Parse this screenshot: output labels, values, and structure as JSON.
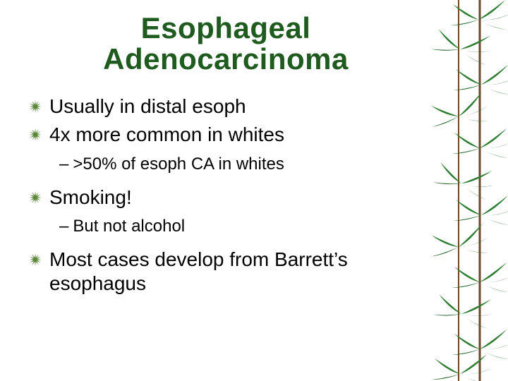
{
  "slide": {
    "title_line1": "Esophageal",
    "title_line2": "Adenocarcinoma",
    "title_color": "#1f5a1f",
    "title_fontsize": 42,
    "body_color": "#000000",
    "body_fontsize": 28,
    "sub_fontsize": 24,
    "bullet_color": "#5a8a3a",
    "background_color": "#ffffff",
    "items": [
      {
        "text": "Usually in distal esoph",
        "sub": []
      },
      {
        "text": "4x more common in whites",
        "sub": [
          ">50% of esoph CA in whites"
        ]
      },
      {
        "text": "Smoking!",
        "sub": [
          "But not alcohol"
        ]
      },
      {
        "text": "Most cases develop from Barrett’s esophagus",
        "sub": []
      }
    ]
  },
  "decor": {
    "leaf_fill": "#2e7d32",
    "leaf_dark": "#1b5e20",
    "stem_color": "#6b4a2b"
  }
}
